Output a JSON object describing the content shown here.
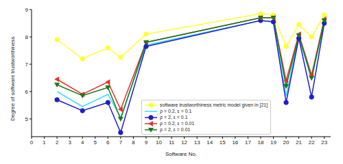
{
  "chart_data": {
    "type": "line",
    "x_label": "Software No.",
    "y_label": "Degree of software trustworthiness",
    "x": [
      2,
      4,
      6,
      7,
      9,
      18,
      19,
      20,
      21,
      22,
      23
    ],
    "xlim": [
      0,
      23.5
    ],
    "xticks": [
      0,
      1,
      2,
      3,
      4,
      5,
      6,
      7,
      8,
      9,
      10,
      11,
      12,
      13,
      14,
      15,
      16,
      17,
      18,
      19,
      20,
      21,
      22,
      23
    ],
    "ylim": [
      4.35,
      9
    ],
    "yticks": [
      5,
      6,
      7,
      8,
      9
    ],
    "grid": false,
    "legend": "lower center",
    "series": [
      {
        "name": "software trustworthiness metric model given in [21]",
        "color": "#ffff33",
        "marker": "circle",
        "values": [
          7.9,
          7.2,
          7.6,
          7.25,
          8.1,
          8.85,
          8.8,
          7.65,
          8.45,
          8.0,
          8.8
        ]
      },
      {
        "name": "ρ = 0.2, ε = 0.1",
        "color": "#33ddff",
        "marker": "none",
        "values": [
          6.0,
          5.45,
          5.9,
          5.05,
          7.7,
          8.6,
          8.55,
          5.85,
          8.0,
          6.45,
          8.55
        ]
      },
      {
        "name": "ρ = 2, ε = 0.1",
        "color": "#1f1fcc",
        "marker": "circle",
        "values": [
          5.7,
          5.3,
          5.6,
          4.5,
          7.65,
          8.6,
          8.55,
          5.6,
          7.95,
          5.8,
          8.5
        ]
      },
      {
        "name": "ρ = 0.2, ε = 0.01",
        "color": "#e8312a",
        "marker": "triangle_left",
        "values": [
          6.45,
          5.9,
          6.35,
          5.35,
          7.8,
          8.7,
          8.7,
          6.4,
          8.1,
          6.6,
          8.65
        ]
      },
      {
        "name": "ρ = 2, ε = 0.01",
        "color": "#1a7a1a",
        "marker": "triangle_down",
        "values": [
          6.25,
          5.85,
          6.15,
          5.0,
          7.8,
          8.7,
          8.7,
          6.2,
          8.05,
          6.5,
          8.6
        ]
      }
    ]
  }
}
